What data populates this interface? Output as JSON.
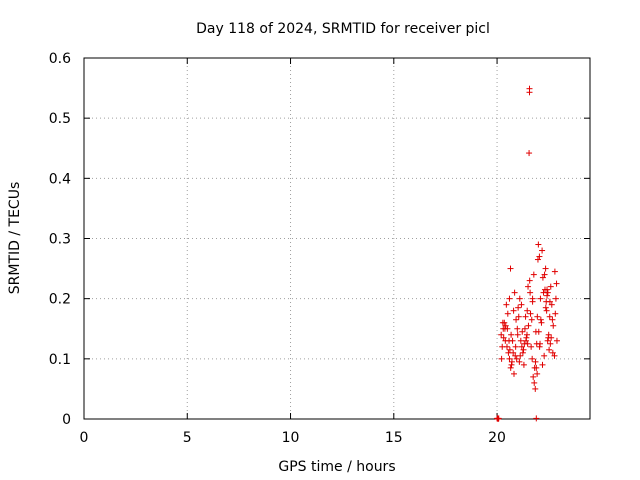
{
  "chart_data": {
    "type": "scatter",
    "title": "Day 118 of 2024, SRMTID for receiver picl",
    "xlabel": "GPS time / hours",
    "ylabel": "SRMTID / TECUs",
    "xlim": [
      0,
      24.5
    ],
    "ylim": [
      0,
      0.6
    ],
    "xticks": [
      0,
      5,
      10,
      15,
      20
    ],
    "yticks": [
      0,
      0.1,
      0.2,
      0.3,
      0.4,
      0.5,
      0.6
    ],
    "grid": true,
    "marker": "+",
    "color": "#e00000",
    "series": [
      {
        "name": "SRMTID",
        "x": [
          20.0,
          20.03,
          20.05,
          20.08,
          21.57,
          21.57,
          21.55,
          21.9,
          20.2,
          20.25,
          20.3,
          20.35,
          20.4,
          20.45,
          20.5,
          20.55,
          20.6,
          20.65,
          20.7,
          20.75,
          20.8,
          20.85,
          20.9,
          20.95,
          21.0,
          21.05,
          21.1,
          21.15,
          21.2,
          21.25,
          21.3,
          21.35,
          21.4,
          21.45,
          21.5,
          21.6,
          21.65,
          21.7,
          21.75,
          21.8,
          21.85,
          21.95,
          22.0,
          22.05,
          22.1,
          22.15,
          22.2,
          22.25,
          22.3,
          22.35,
          22.4,
          22.45,
          22.5,
          22.55,
          22.6,
          22.65,
          22.7,
          22.8,
          22.85,
          22.9,
          20.22,
          20.32,
          20.42,
          20.52,
          20.62,
          20.72,
          20.82,
          20.92,
          21.02,
          21.12,
          21.22,
          21.32,
          21.42,
          21.52,
          21.62,
          21.72,
          21.82,
          21.92,
          22.02,
          22.12,
          22.22,
          22.32,
          22.42,
          22.52,
          22.62,
          22.72,
          22.82,
          20.28,
          20.48,
          20.68,
          20.88,
          21.08,
          21.28,
          21.48,
          21.68,
          21.88,
          22.08,
          22.28,
          22.48,
          22.68,
          22.88,
          20.38,
          20.58,
          20.78,
          20.98,
          21.18,
          21.38,
          21.58,
          21.78,
          21.98,
          22.18,
          22.38,
          22.58,
          22.78,
          21.86,
          21.9,
          21.94,
          22.36,
          22.42,
          20.6,
          20.66,
          21.46,
          21.72,
          22.06,
          22.46,
          22.56
        ],
        "y": [
          0.001,
          0.001,
          0.0,
          0.001,
          0.549,
          0.543,
          0.442,
          0.001,
          0.14,
          0.12,
          0.15,
          0.16,
          0.13,
          0.19,
          0.15,
          0.11,
          0.2,
          0.25,
          0.09,
          0.13,
          0.18,
          0.21,
          0.12,
          0.1,
          0.14,
          0.17,
          0.2,
          0.13,
          0.12,
          0.11,
          0.09,
          0.15,
          0.13,
          0.14,
          0.22,
          0.21,
          0.12,
          0.1,
          0.07,
          0.06,
          0.05,
          0.17,
          0.29,
          0.27,
          0.2,
          0.16,
          0.09,
          0.21,
          0.24,
          0.25,
          0.18,
          0.13,
          0.14,
          0.17,
          0.22,
          0.19,
          0.11,
          0.245,
          0.2,
          0.13,
          0.1,
          0.135,
          0.155,
          0.175,
          0.115,
          0.095,
          0.075,
          0.165,
          0.185,
          0.105,
          0.145,
          0.125,
          0.135,
          0.155,
          0.175,
          0.195,
          0.085,
          0.125,
          0.145,
          0.165,
          0.235,
          0.215,
          0.205,
          0.115,
          0.135,
          0.155,
          0.175,
          0.16,
          0.12,
          0.14,
          0.105,
          0.095,
          0.115,
          0.125,
          0.165,
          0.145,
          0.125,
          0.105,
          0.135,
          0.165,
          0.225,
          0.15,
          0.13,
          0.11,
          0.15,
          0.19,
          0.17,
          0.23,
          0.24,
          0.265,
          0.28,
          0.195,
          0.125,
          0.105,
          0.095,
          0.085,
          0.075,
          0.185,
          0.215,
          0.1,
          0.085,
          0.18,
          0.2,
          0.12,
          0.21,
          0.195
        ]
      }
    ]
  }
}
